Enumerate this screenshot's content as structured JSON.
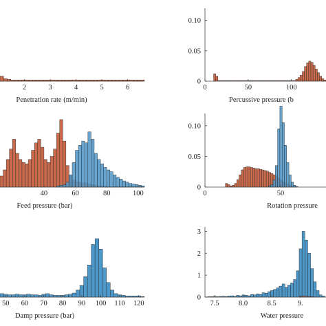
{
  "colors": {
    "red": "#c96a4c",
    "blue": "#4d97c9",
    "edge": "#2b2b2b",
    "axis": "#444444"
  },
  "chart_data": [
    {
      "type": "bar",
      "panel": "penetration",
      "xlabel": "Penetration rate (m/min)",
      "ylabel": "",
      "xlim": [
        1.05,
        6.65
      ],
      "ylim": [
        0,
        0.12
      ],
      "xticks": [
        2,
        3,
        4,
        5,
        6
      ],
      "xtick_labels": [
        "2",
        "3",
        "4",
        "5",
        "6"
      ],
      "yticks": [],
      "ytick_labels": [],
      "series": [
        {
          "color": "red",
          "bin_start": 1.05,
          "bin_width": 0.14,
          "values": [
            0.008,
            0.004,
            0.003,
            0.002,
            0.002,
            0.002,
            0.002,
            0.002,
            0.002,
            0.002,
            0.002,
            0.002,
            0.002,
            0.002,
            0.002,
            0.002,
            0.002,
            0.002,
            0.002,
            0.002,
            0.002,
            0.002,
            0.002,
            0.002,
            0.002,
            0.002,
            0.002,
            0.002,
            0.002,
            0.002,
            0.002,
            0.002,
            0.002,
            0.002,
            0.002,
            0.002,
            0.002,
            0.002,
            0.002,
            0.002
          ]
        }
      ]
    },
    {
      "type": "bar",
      "panel": "percussive",
      "xlabel": "Percussive pressure (b",
      "ylabel": "",
      "xlim": [
        0,
        140
      ],
      "ylim": [
        0,
        0.12
      ],
      "xticks": [
        0,
        50,
        100
      ],
      "xtick_labels": [
        "0",
        "50",
        "100"
      ],
      "yticks": [
        0,
        0.05,
        0.1
      ],
      "ytick_labels": [
        "0",
        "0.05",
        "0.10"
      ],
      "series": [
        {
          "color": "red",
          "bin_start": 0,
          "bin_width": 2.5,
          "values": [
            0,
            0,
            0,
            0,
            0.012,
            0.008,
            0.001,
            0.001,
            0.001,
            0.001,
            0.001,
            0.001,
            0.001,
            0.001,
            0.001,
            0.001,
            0.001,
            0.001,
            0.001,
            0.001,
            0.001,
            0.001,
            0.001,
            0.001,
            0.001,
            0.001,
            0.001,
            0.001,
            0.001,
            0.001,
            0.001,
            0.001,
            0.001,
            0.001,
            0.001,
            0.001,
            0.001,
            0.001,
            0.001,
            0.001,
            0.001,
            0.001,
            0.003,
            0.006,
            0.01,
            0.016,
            0.024,
            0.03,
            0.033,
            0.031,
            0.026,
            0.02,
            0.014,
            0.008,
            0.004,
            0.002
          ]
        }
      ]
    },
    {
      "type": "bar",
      "panel": "feed",
      "xlabel": "Feed pressure (bar)",
      "ylabel": "",
      "xlim": [
        12,
        104
      ],
      "ylim": [
        0,
        0.12
      ],
      "xticks": [
        40,
        60,
        80,
        100
      ],
      "xtick_labels": [
        "40",
        "60",
        "80",
        "100"
      ],
      "yticks": [],
      "ytick_labels": [],
      "series": [
        {
          "color": "red",
          "bin_start": 12,
          "bin_width": 2,
          "values": [
            0.018,
            0.028,
            0.045,
            0.062,
            0.078,
            0.055,
            0.045,
            0.04,
            0.038,
            0.045,
            0.06,
            0.072,
            0.078,
            0.065,
            0.045,
            0.04,
            0.05,
            0.062,
            0.088,
            0.11,
            0.075,
            0.035,
            0.018,
            0.012,
            0.009,
            0.008,
            0.007,
            0.006,
            0.005,
            0.004,
            0.003,
            0.002,
            0.002,
            0.001,
            0.001,
            0.001,
            0.001,
            0.001,
            0.001,
            0.001,
            0.001,
            0.001,
            0.001,
            0.001,
            0.001,
            0
          ]
        },
        {
          "color": "blue",
          "bin_start": 12,
          "bin_width": 2,
          "values": [
            0,
            0,
            0,
            0,
            0,
            0,
            0,
            0,
            0,
            0,
            0,
            0,
            0,
            0,
            0,
            0,
            0,
            0,
            0.002,
            0.003,
            0.004,
            0.008,
            0.02,
            0.04,
            0.06,
            0.068,
            0.075,
            0.072,
            0.09,
            0.078,
            0.055,
            0.045,
            0.038,
            0.032,
            0.028,
            0.025,
            0.02,
            0.016,
            0.013,
            0.01,
            0.008,
            0.006,
            0.005,
            0.004,
            0.003,
            0.002
          ]
        }
      ]
    },
    {
      "type": "bar",
      "panel": "rotation",
      "xlabel": "Rotation pressure",
      "ylabel": "",
      "xlim": [
        0,
        80
      ],
      "ylim": [
        0,
        0.12
      ],
      "xticks": [
        0,
        50
      ],
      "xtick_labels": [
        "0",
        "50"
      ],
      "yticks": [
        0,
        0.05,
        0.1
      ],
      "ytick_labels": [
        "0",
        "0.05",
        "0.10"
      ],
      "series": [
        {
          "color": "red",
          "bin_start": 0,
          "bin_width": 1.5,
          "values": [
            0,
            0,
            0,
            0,
            0,
            0,
            0,
            0,
            0,
            0.006,
            0.004,
            0.002,
            0.003,
            0.006,
            0.012,
            0.02,
            0.028,
            0.032,
            0.033,
            0.033,
            0.032,
            0.031,
            0.03,
            0.03,
            0.029,
            0.028,
            0.027,
            0.026,
            0.024,
            0.022,
            0.02,
            0.018,
            0.015,
            0.012,
            0.009,
            0.007,
            0.005,
            0.003,
            0.002,
            0.001,
            0,
            0,
            0,
            0,
            0,
            0,
            0,
            0,
            0,
            0,
            0,
            0,
            0
          ]
        },
        {
          "color": "blue",
          "bin_start": 0,
          "bin_width": 1.5,
          "values": [
            0,
            0,
            0,
            0,
            0,
            0,
            0,
            0,
            0,
            0,
            0,
            0,
            0,
            0,
            0,
            0,
            0,
            0,
            0,
            0,
            0,
            0,
            0,
            0,
            0,
            0,
            0,
            0,
            0.002,
            0.004,
            0.012,
            0.035,
            0.095,
            0.132,
            0.105,
            0.068,
            0.04,
            0.02,
            0.008,
            0.003,
            0.001,
            0,
            0,
            0,
            0,
            0,
            0,
            0,
            0,
            0,
            0,
            0,
            0
          ]
        }
      ]
    },
    {
      "type": "bar",
      "panel": "damp",
      "xlabel": "Damp pressure (bar)",
      "ylabel": "",
      "xlim": [
        47,
        123
      ],
      "ylim": [
        0,
        0.12
      ],
      "xticks": [
        50,
        60,
        70,
        80,
        90,
        100,
        110,
        120
      ],
      "xtick_labels": [
        "50",
        "60",
        "70",
        "80",
        "90",
        "100",
        "110",
        "120"
      ],
      "yticks": [],
      "ytick_labels": [],
      "series": [
        {
          "color": "blue",
          "bin_start": 47,
          "bin_width": 2,
          "values": [
            0.006,
            0.005,
            0.004,
            0.004,
            0.005,
            0.004,
            0.004,
            0.005,
            0.004,
            0.004,
            0.003,
            0.005,
            0.006,
            0.004,
            0.003,
            0.003,
            0.003,
            0.004,
            0.005,
            0.007,
            0.012,
            0.02,
            0.035,
            0.055,
            0.09,
            0.1,
            0.082,
            0.05,
            0.025,
            0.012,
            0.006,
            0.004,
            0.003,
            0.002,
            0.002,
            0.002,
            0.002,
            0.001
          ]
        }
      ]
    },
    {
      "type": "bar",
      "panel": "water",
      "xlabel": "Water pressure",
      "ylabel": "",
      "xlim": [
        7.33,
        9.45
      ],
      "ylim": [
        0,
        3.2
      ],
      "xticks": [
        7.5,
        8.0,
        8.5,
        9.0
      ],
      "xtick_labels": [
        "7.5",
        "8.0",
        "8.5",
        "9."
      ],
      "yticks": [
        0,
        1,
        2,
        3
      ],
      "ytick_labels": [
        "0",
        "1",
        "2",
        "3"
      ],
      "series": [
        {
          "color": "blue",
          "bin_start": 7.33,
          "bin_width": 0.05,
          "values": [
            0.01,
            0.02,
            0.02,
            0.03,
            0.02,
            0.03,
            0.04,
            0.03,
            0.05,
            0.06,
            0.04,
            0.08,
            0.06,
            0.1,
            0.08,
            0.06,
            0.12,
            0.1,
            0.15,
            0.12,
            0.2,
            0.18,
            0.25,
            0.3,
            0.35,
            0.42,
            0.5,
            0.6,
            0.45,
            0.55,
            0.65,
            0.8,
            1.2,
            2.2,
            3.0,
            2.6,
            2.0,
            1.3,
            0.7,
            0.3,
            0.1,
            0.05
          ]
        },
        {
          "color": "red",
          "bin_start": 7.33,
          "bin_width": 0.05,
          "values": [
            0,
            0,
            0,
            0,
            0,
            0,
            0,
            0,
            0,
            0,
            0,
            0,
            0,
            0,
            0,
            0,
            0,
            0,
            0,
            0,
            0,
            0,
            0,
            0,
            0,
            0,
            0,
            0,
            0,
            0,
            0,
            0,
            0,
            0.03,
            0.05,
            0.04,
            0.03,
            0.02,
            0.01,
            0,
            0,
            0
          ]
        }
      ]
    }
  ]
}
